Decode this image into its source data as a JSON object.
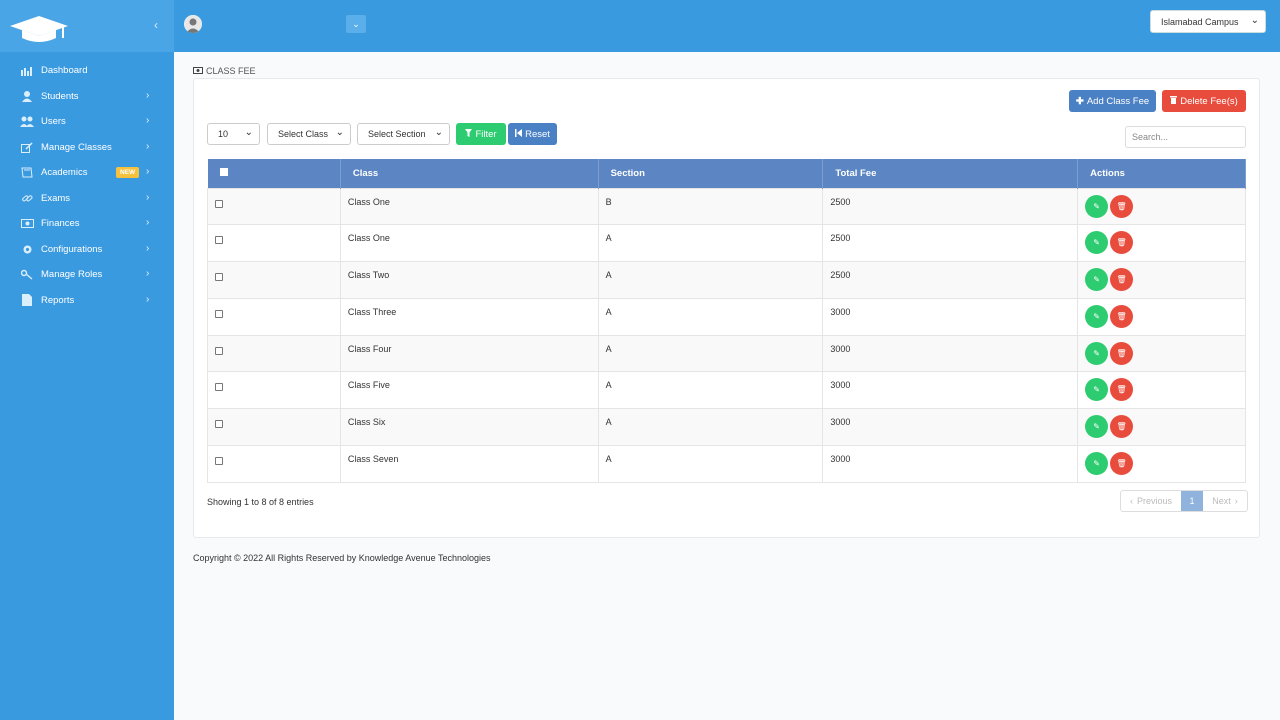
{
  "sidebar": {
    "items": [
      {
        "label": "Dashboard",
        "icon": "bar-chart-icon",
        "chevron": false
      },
      {
        "label": "Students",
        "icon": "user-icon",
        "chevron": true
      },
      {
        "label": "Users",
        "icon": "users-icon",
        "chevron": true
      },
      {
        "label": "Manage Classes",
        "icon": "edit-icon",
        "chevron": true
      },
      {
        "label": "Academics",
        "icon": "book-icon",
        "chevron": true,
        "badge": "NEW"
      },
      {
        "label": "Exams",
        "icon": "link-icon",
        "chevron": true
      },
      {
        "label": "Finances",
        "icon": "money-icon",
        "chevron": true
      },
      {
        "label": "Configurations",
        "icon": "gear-icon",
        "chevron": true
      },
      {
        "label": "Manage Roles",
        "icon": "key-icon",
        "chevron": true
      },
      {
        "label": "Reports",
        "icon": "file-icon",
        "chevron": true
      }
    ]
  },
  "topbar": {
    "campus": "Islamabad Campus"
  },
  "page": {
    "breadcrumb": "CLASS FEE",
    "add_label": "Add Class Fee",
    "delete_label": "Delete Fee(s)",
    "length_value": "10",
    "class_select": "Select Class",
    "section_select": "Select Section",
    "filter_label": "Filter",
    "reset_label": "Reset",
    "search_placeholder": "Search..."
  },
  "table": {
    "headers": [
      "Class",
      "Section",
      "Total Fee",
      "Actions"
    ],
    "rows": [
      {
        "class": "Class One",
        "section": "B",
        "fee": "2500"
      },
      {
        "class": "Class One",
        "section": "A",
        "fee": "2500"
      },
      {
        "class": "Class Two",
        "section": "A",
        "fee": "2500"
      },
      {
        "class": "Class Three",
        "section": "A",
        "fee": "3000"
      },
      {
        "class": "Class Four",
        "section": "A",
        "fee": "3000"
      },
      {
        "class": "Class Five",
        "section": "A",
        "fee": "3000"
      },
      {
        "class": "Class Six",
        "section": "A",
        "fee": "3000"
      },
      {
        "class": "Class Seven",
        "section": "A",
        "fee": "3000"
      }
    ]
  },
  "pagination": {
    "info": "Showing 1 to 8 of 8 entries",
    "prev": "Previous",
    "current": "1",
    "next": "Next"
  },
  "footer": {
    "text": "Copyright © 2022 All Rights Reserved by Knowledge Avenue Technologies"
  },
  "colors": {
    "primary": "#3a9ae0",
    "header_blue": "#5b86c3",
    "success": "#2ecc71",
    "danger": "#e74c3c"
  }
}
